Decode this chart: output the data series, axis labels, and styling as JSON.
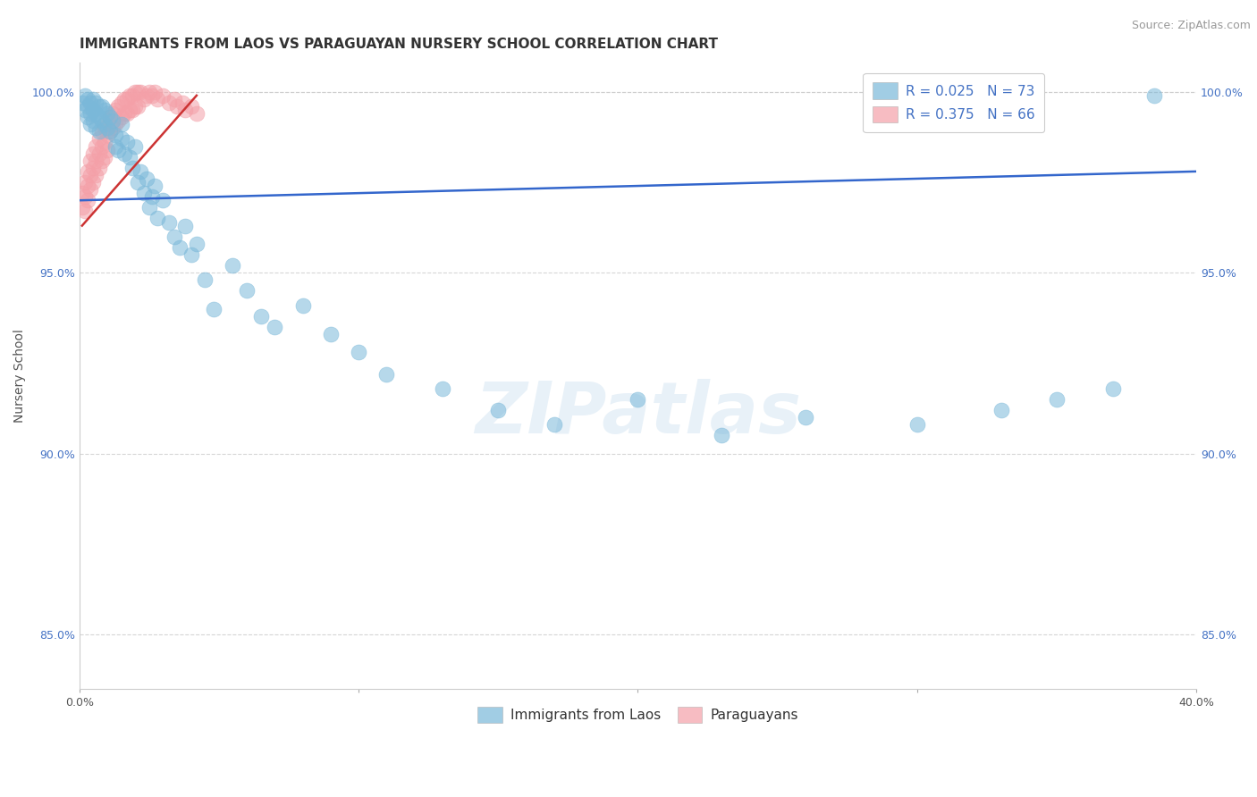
{
  "title": "IMMIGRANTS FROM LAOS VS PARAGUAYAN NURSERY SCHOOL CORRELATION CHART",
  "source_text": "Source: ZipAtlas.com",
  "xlabel": "",
  "ylabel": "Nursery School",
  "xlim": [
    0.0,
    0.4
  ],
  "ylim": [
    0.835,
    1.008
  ],
  "xticks": [
    0.0,
    0.1,
    0.2,
    0.3,
    0.4
  ],
  "xticklabels": [
    "0.0%",
    "",
    "",
    "",
    "40.0%"
  ],
  "yticks": [
    0.85,
    0.9,
    0.95,
    1.0
  ],
  "yticklabels": [
    "85.0%",
    "90.0%",
    "95.0%",
    "100.0%"
  ],
  "blue_color": "#7ab8d9",
  "pink_color": "#f4a0a8",
  "trend_blue": "#3366cc",
  "trend_pink": "#cc3333",
  "legend_R_blue": "R = 0.025",
  "legend_N_blue": "N = 73",
  "legend_R_pink": "R = 0.375",
  "legend_N_pink": "N = 66",
  "legend_label_blue": "Immigrants from Laos",
  "legend_label_pink": "Paraguayans",
  "watermark": "ZIPatlas",
  "blue_scatter_x": [
    0.001,
    0.002,
    0.002,
    0.003,
    0.003,
    0.003,
    0.004,
    0.004,
    0.004,
    0.005,
    0.005,
    0.005,
    0.006,
    0.006,
    0.006,
    0.007,
    0.007,
    0.007,
    0.008,
    0.008,
    0.009,
    0.009,
    0.01,
    0.01,
    0.011,
    0.011,
    0.012,
    0.013,
    0.013,
    0.014,
    0.015,
    0.015,
    0.016,
    0.017,
    0.018,
    0.019,
    0.02,
    0.021,
    0.022,
    0.023,
    0.024,
    0.025,
    0.026,
    0.027,
    0.028,
    0.03,
    0.032,
    0.034,
    0.036,
    0.038,
    0.04,
    0.042,
    0.045,
    0.048,
    0.055,
    0.06,
    0.065,
    0.07,
    0.08,
    0.09,
    0.1,
    0.11,
    0.13,
    0.15,
    0.17,
    0.2,
    0.23,
    0.26,
    0.3,
    0.33,
    0.35,
    0.37,
    0.385
  ],
  "blue_scatter_y": [
    0.997,
    0.999,
    0.995,
    0.998,
    0.996,
    0.993,
    0.997,
    0.994,
    0.991,
    0.998,
    0.995,
    0.992,
    0.997,
    0.994,
    0.99,
    0.996,
    0.993,
    0.989,
    0.996,
    0.992,
    0.995,
    0.991,
    0.994,
    0.99,
    0.993,
    0.989,
    0.992,
    0.988,
    0.985,
    0.984,
    0.991,
    0.987,
    0.983,
    0.986,
    0.982,
    0.979,
    0.985,
    0.975,
    0.978,
    0.972,
    0.976,
    0.968,
    0.971,
    0.974,
    0.965,
    0.97,
    0.964,
    0.96,
    0.957,
    0.963,
    0.955,
    0.958,
    0.948,
    0.94,
    0.952,
    0.945,
    0.938,
    0.935,
    0.941,
    0.933,
    0.928,
    0.922,
    0.918,
    0.912,
    0.908,
    0.915,
    0.905,
    0.91,
    0.908,
    0.912,
    0.915,
    0.918,
    0.999
  ],
  "pink_scatter_x": [
    0.001,
    0.001,
    0.002,
    0.002,
    0.002,
    0.003,
    0.003,
    0.003,
    0.004,
    0.004,
    0.004,
    0.005,
    0.005,
    0.005,
    0.006,
    0.006,
    0.006,
    0.007,
    0.007,
    0.007,
    0.008,
    0.008,
    0.008,
    0.009,
    0.009,
    0.009,
    0.01,
    0.01,
    0.01,
    0.011,
    0.011,
    0.012,
    0.012,
    0.013,
    0.013,
    0.014,
    0.014,
    0.015,
    0.015,
    0.016,
    0.016,
    0.017,
    0.017,
    0.018,
    0.018,
    0.019,
    0.019,
    0.02,
    0.02,
    0.021,
    0.021,
    0.022,
    0.023,
    0.024,
    0.025,
    0.026,
    0.027,
    0.028,
    0.03,
    0.032,
    0.034,
    0.035,
    0.037,
    0.038,
    0.04,
    0.042
  ],
  "pink_scatter_y": [
    0.972,
    0.968,
    0.975,
    0.971,
    0.967,
    0.978,
    0.974,
    0.97,
    0.981,
    0.977,
    0.973,
    0.983,
    0.979,
    0.975,
    0.985,
    0.981,
    0.977,
    0.987,
    0.983,
    0.979,
    0.989,
    0.985,
    0.981,
    0.99,
    0.986,
    0.982,
    0.992,
    0.988,
    0.984,
    0.993,
    0.989,
    0.994,
    0.99,
    0.995,
    0.991,
    0.996,
    0.992,
    0.997,
    0.993,
    0.998,
    0.994,
    0.998,
    0.994,
    0.999,
    0.995,
    0.999,
    0.995,
    1.0,
    0.996,
    1.0,
    0.996,
    1.0,
    0.998,
    0.999,
    1.0,
    0.999,
    1.0,
    0.998,
    0.999,
    0.997,
    0.998,
    0.996,
    0.997,
    0.995,
    0.996,
    0.994
  ],
  "grid_color": "#cccccc",
  "background_color": "#ffffff",
  "title_fontsize": 11,
  "axis_label_fontsize": 10,
  "tick_fontsize": 9,
  "legend_fontsize": 11,
  "source_fontsize": 9,
  "blue_trend_x": [
    0.0,
    0.4
  ],
  "blue_trend_y": [
    0.97,
    0.978
  ],
  "pink_trend_x": [
    0.001,
    0.042
  ],
  "pink_trend_y": [
    0.963,
    0.999
  ]
}
